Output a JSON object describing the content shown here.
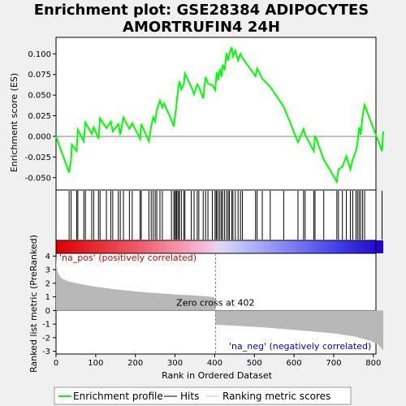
{
  "chart_data": {
    "type": "line",
    "title_line1": "Enrichment plot: GSE28384 ADIPOCYTES",
    "title_line2": "AMORTRUFIN4 24H",
    "xlabel": "Rank in Ordered Dataset",
    "ylabel_top": "Enrichment score (ES)",
    "ylabel_bottom": "Ranked list metric (PreRanked)",
    "x_range": [
      0,
      825
    ],
    "es_ylim": [
      -0.065,
      0.12
    ],
    "es_yticks": [
      -0.05,
      -0.025,
      0.0,
      0.025,
      0.05,
      0.075,
      0.1
    ],
    "es_ytick_labels": [
      "-0.050",
      "-0.025",
      "0.000",
      "0.025",
      "0.050",
      "0.075",
      "0.100"
    ],
    "metric_ylim": [
      -3.2,
      4.2
    ],
    "metric_yticks": [
      -3,
      -2,
      -1,
      0,
      1,
      2,
      3,
      4
    ],
    "metric_ytick_labels": [
      "-3",
      "-2",
      "-1",
      "0",
      "1",
      "2",
      "3",
      "4"
    ],
    "xticks": [
      0,
      100,
      200,
      300,
      400,
      500,
      600,
      700,
      800
    ],
    "xtick_labels": [
      "0",
      "100",
      "200",
      "300",
      "400",
      "500",
      "600",
      "700",
      "800"
    ],
    "zero_cross": 402,
    "zero_cross_label": "Zero cross at 402",
    "pos_label": "'na_pos' (positively correlated)",
    "neg_label": "'na_neg' (negatively correlated)",
    "hits": [
      33,
      38,
      52,
      55,
      70,
      74,
      90,
      95,
      107,
      111,
      127,
      138,
      143,
      157,
      162,
      170,
      185,
      192,
      212,
      215,
      234,
      240,
      245,
      250,
      254,
      262,
      268,
      291,
      297,
      300,
      303,
      305,
      309,
      311,
      316,
      322,
      325,
      341,
      348,
      356,
      360,
      371,
      377,
      383,
      394,
      401,
      404,
      405,
      409,
      413,
      417,
      420,
      425,
      430,
      434,
      437,
      443,
      446,
      452,
      459,
      465,
      470,
      503,
      507,
      520,
      540,
      574,
      610,
      624,
      628,
      650,
      653,
      675,
      708,
      712,
      722,
      732,
      742,
      748,
      756,
      760,
      764,
      768,
      773,
      778,
      822
    ],
    "es_curve": [
      [
        0,
        0.0
      ],
      [
        33,
        -0.044
      ],
      [
        38,
        -0.028
      ],
      [
        40,
        -0.01
      ],
      [
        52,
        -0.018
      ],
      [
        55,
        0.008
      ],
      [
        70,
        -0.006
      ],
      [
        74,
        0.017
      ],
      [
        90,
        0.003
      ],
      [
        95,
        0.011
      ],
      [
        107,
        -0.003
      ],
      [
        111,
        0.022
      ],
      [
        127,
        0.01
      ],
      [
        138,
        0.018
      ],
      [
        143,
        0.006
      ],
      [
        157,
        0.015
      ],
      [
        162,
        0.002
      ],
      [
        170,
        0.023
      ],
      [
        185,
        0.009
      ],
      [
        192,
        0.016
      ],
      [
        212,
        -0.003
      ],
      [
        215,
        0.015
      ],
      [
        234,
        -0.006
      ],
      [
        240,
        0.012
      ],
      [
        245,
        0.023
      ],
      [
        250,
        0.018
      ],
      [
        254,
        0.032
      ],
      [
        262,
        0.043
      ],
      [
        268,
        0.035
      ],
      [
        272,
        0.04
      ],
      [
        291,
        0.02
      ],
      [
        297,
        0.012
      ],
      [
        300,
        0.024
      ],
      [
        303,
        0.035
      ],
      [
        305,
        0.046
      ],
      [
        309,
        0.06
      ],
      [
        311,
        0.067
      ],
      [
        316,
        0.057
      ],
      [
        322,
        0.063
      ],
      [
        325,
        0.076
      ],
      [
        341,
        0.06
      ],
      [
        348,
        0.051
      ],
      [
        356,
        0.063
      ],
      [
        360,
        0.06
      ],
      [
        371,
        0.046
      ],
      [
        377,
        0.072
      ],
      [
        383,
        0.064
      ],
      [
        394,
        0.062
      ],
      [
        401,
        0.056
      ],
      [
        404,
        0.07
      ],
      [
        405,
        0.078
      ],
      [
        409,
        0.068
      ],
      [
        413,
        0.082
      ],
      [
        417,
        0.072
      ],
      [
        420,
        0.087
      ],
      [
        425,
        0.08
      ],
      [
        430,
        0.101
      ],
      [
        434,
        0.092
      ],
      [
        437,
        0.1
      ],
      [
        443,
        0.108
      ],
      [
        446,
        0.097
      ],
      [
        452,
        0.104
      ],
      [
        459,
        0.092
      ],
      [
        465,
        0.1
      ],
      [
        470,
        0.095
      ],
      [
        503,
        0.073
      ],
      [
        507,
        0.082
      ],
      [
        520,
        0.07
      ],
      [
        540,
        0.06
      ],
      [
        574,
        0.036
      ],
      [
        610,
        -0.007
      ],
      [
        624,
        0.009
      ],
      [
        628,
        0.002
      ],
      [
        650,
        -0.018
      ],
      [
        653,
        0.001
      ],
      [
        675,
        -0.028
      ],
      [
        708,
        -0.055
      ],
      [
        712,
        -0.04
      ],
      [
        722,
        -0.037
      ],
      [
        732,
        -0.024
      ],
      [
        742,
        -0.04
      ],
      [
        748,
        -0.028
      ],
      [
        756,
        -0.018
      ],
      [
        760,
        -0.009
      ],
      [
        764,
        0.011
      ],
      [
        768,
        0.002
      ],
      [
        773,
        0.025
      ],
      [
        778,
        0.038
      ],
      [
        822,
        -0.018
      ],
      [
        825,
        0.006
      ]
    ],
    "metric_curve": [
      [
        0,
        4.0
      ],
      [
        1,
        3.3
      ],
      [
        3,
        2.9
      ],
      [
        8,
        2.6
      ],
      [
        15,
        2.35
      ],
      [
        30,
        2.15
      ],
      [
        60,
        1.95
      ],
      [
        100,
        1.75
      ],
      [
        150,
        1.55
      ],
      [
        200,
        1.4
      ],
      [
        250,
        1.28
      ],
      [
        300,
        1.18
      ],
      [
        350,
        1.1
      ],
      [
        395,
        1.0
      ],
      [
        401,
        0.9
      ],
      [
        402,
        -1.0
      ],
      [
        405,
        -1.05
      ],
      [
        450,
        -1.12
      ],
      [
        500,
        -1.2
      ],
      [
        550,
        -1.3
      ],
      [
        600,
        -1.42
      ],
      [
        650,
        -1.55
      ],
      [
        700,
        -1.68
      ],
      [
        750,
        -1.9
      ],
      [
        790,
        -2.2
      ],
      [
        810,
        -2.45
      ],
      [
        820,
        -2.75
      ],
      [
        825,
        -3.0
      ]
    ],
    "legend": [
      {
        "label": "Enrichment profile",
        "color": "#00ff00"
      },
      {
        "label": "Hits",
        "color": "#000000"
      },
      {
        "label": "Ranking metric scores",
        "color": "#c0c0c0"
      }
    ],
    "colors": {
      "es_line": "#00ff00",
      "pos_text": "#cc0000",
      "neg_text": "#0000cc",
      "metric_fill": "#b8b8b8"
    }
  }
}
